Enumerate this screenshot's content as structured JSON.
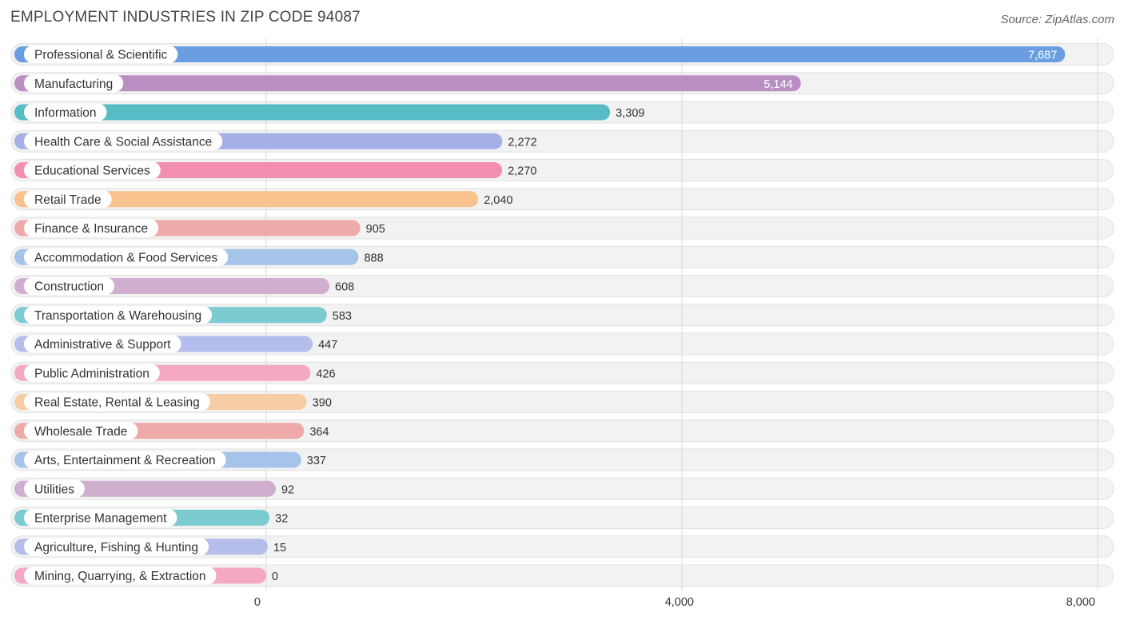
{
  "header": {
    "title": "EMPLOYMENT INDUSTRIES IN ZIP CODE 94087",
    "source": "Source: ZipAtlas.com"
  },
  "chart_data": {
    "type": "bar",
    "orientation": "horizontal",
    "title": "EMPLOYMENT INDUSTRIES IN ZIP CODE 94087",
    "xlabel": "",
    "ylabel": "",
    "xlim": [
      0,
      8000
    ],
    "ticks": [
      0,
      4000,
      8000
    ],
    "tick_labels": [
      "0",
      "4,000",
      "8,000"
    ],
    "grid": true,
    "categories": [
      "Professional & Scientific",
      "Manufacturing",
      "Information",
      "Health Care & Social Assistance",
      "Educational Services",
      "Retail Trade",
      "Finance & Insurance",
      "Accommodation & Food Services",
      "Construction",
      "Transportation & Warehousing",
      "Administrative & Support",
      "Public Administration",
      "Real Estate, Rental & Leasing",
      "Wholesale Trade",
      "Arts, Entertainment & Recreation",
      "Utilities",
      "Enterprise Management",
      "Agriculture, Fishing & Hunting",
      "Mining, Quarrying, & Extraction"
    ],
    "values": [
      7687,
      5144,
      3309,
      2272,
      2270,
      2040,
      905,
      888,
      608,
      583,
      447,
      426,
      390,
      364,
      337,
      92,
      32,
      15,
      0
    ],
    "value_labels": [
      "7,687",
      "5,144",
      "3,309",
      "2,272",
      "2,270",
      "2,040",
      "905",
      "888",
      "608",
      "583",
      "447",
      "426",
      "390",
      "364",
      "337",
      "92",
      "32",
      "15",
      "0"
    ],
    "colors": [
      "#6a9ee0",
      "#b98fc3",
      "#58bcc6",
      "#a5b0e6",
      "#f28fb0",
      "#f9c38f",
      "#eeaaa8",
      "#a6c3ea",
      "#cfaed0",
      "#7ccbd1",
      "#b5bdea",
      "#f4a8c4",
      "#f9cda4",
      "#eeaaa8",
      "#a6c3ea",
      "#cfaed0",
      "#7ccbd1",
      "#b5bdea",
      "#f4a8c4"
    ]
  }
}
